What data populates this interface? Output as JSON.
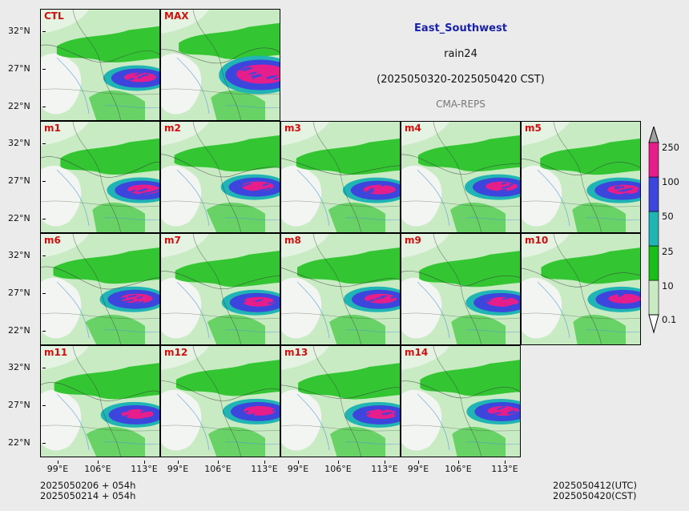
{
  "header": {
    "region": "East_Southwest",
    "variable": "rain24",
    "period": "(2025050320-2025050420 CST)",
    "model": "CMA-REPS"
  },
  "panels": [
    "CTL",
    "MAX",
    "m1",
    "m2",
    "m3",
    "m4",
    "m5",
    "m6",
    "m7",
    "m8",
    "m9",
    "m10",
    "m11",
    "m12",
    "m13",
    "m14"
  ],
  "y_axis_ticks": [
    "32°N",
    "27°N",
    "22°N"
  ],
  "x_axis_ticks": [
    "99°E",
    "106°E",
    "113°E"
  ],
  "footer": {
    "left_line1": "2025050206  +  054h",
    "left_line2": "2025050214  +  054h",
    "right_line1": "2025050412(UTC)",
    "right_line2": "2025050420(CST)"
  },
  "colorbar": {
    "levels": [
      "0.1",
      "10",
      "25",
      "50",
      "100",
      "250"
    ],
    "colors": [
      "#c8ebc3",
      "#19be19",
      "#20b4b4",
      "#3c46dc",
      "#e61e8c"
    ],
    "extend_under_color": "#ffffff",
    "extend_over_color": "#a0a0a0"
  }
}
